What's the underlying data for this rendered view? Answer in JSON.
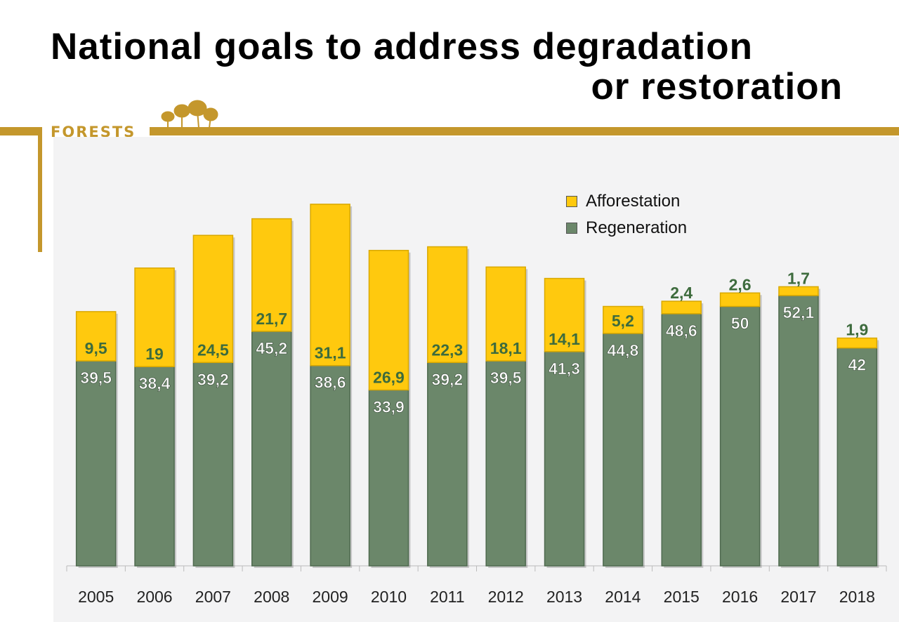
{
  "title": {
    "line1": "National goals to address degradation",
    "line2": "or restoration"
  },
  "logo": {
    "text": "FORESTS"
  },
  "colors": {
    "afforestation": "#ffc90e",
    "regeneration": "#6b876a",
    "brand": "#c4972c",
    "afforestation_label": "#3d6b3d",
    "regeneration_label": "#ffffff"
  },
  "chart_data": {
    "type": "bar",
    "stacked": true,
    "title": "National goals to address degradation or restoration",
    "categories": [
      "2005",
      "2006",
      "2007",
      "2008",
      "2009",
      "2010",
      "2011",
      "2012",
      "2013",
      "2014",
      "2015",
      "2016",
      "2017",
      "2018"
    ],
    "series": [
      {
        "name": "Regeneration",
        "values": [
          39.5,
          38.4,
          39.2,
          45.2,
          38.6,
          33.9,
          39.2,
          39.5,
          41.3,
          44.8,
          48.6,
          50,
          52.1,
          42
        ],
        "labels": [
          "39,5",
          "38,4",
          "39,2",
          "45,2",
          "38,6",
          "33,9",
          "39,2",
          "39,5",
          "41,3",
          "44,8",
          "48,6",
          "50",
          "52,1",
          "42"
        ]
      },
      {
        "name": "Afforestation",
        "values": [
          9.5,
          19,
          24.5,
          21.7,
          31.1,
          26.9,
          22.3,
          18.1,
          14.1,
          5.2,
          2.4,
          2.6,
          1.7,
          1.9
        ],
        "labels": [
          "9,5",
          "19",
          "24,5",
          "21,7",
          "31,1",
          "26,9",
          "22,3",
          "18,1",
          "14,1",
          "5,2",
          "2,4",
          "2,6",
          "1,7",
          "1,9"
        ]
      }
    ],
    "legend": {
      "items": [
        "Afforestation",
        "Regeneration"
      ],
      "position": "top-right"
    },
    "ylim": [
      0,
      70
    ],
    "grid": false
  }
}
